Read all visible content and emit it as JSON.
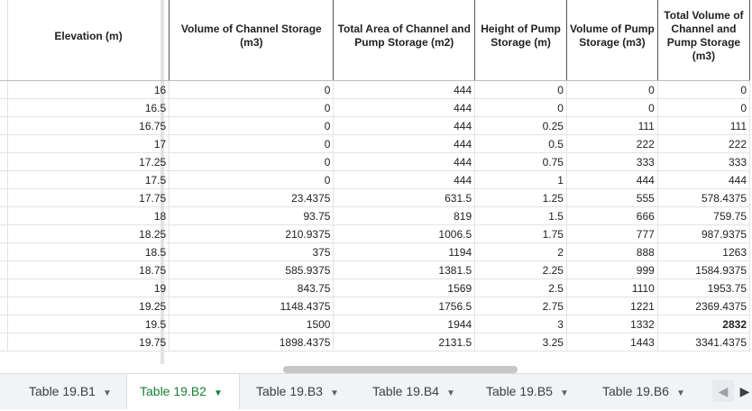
{
  "headers": [
    "Elevation (m)",
    "Volume of Channel Storage (m3)",
    "Total Area of Channel and Pump Storage (m2)",
    "Height of Pump Storage (m)",
    "Volume of Pump Storage (m3)",
    "Total Volume of Channel and Pump Storage (m3)"
  ],
  "rows": [
    [
      "16",
      "0",
      "444",
      "0",
      "0",
      "0"
    ],
    [
      "16.5",
      "0",
      "444",
      "0",
      "0",
      "0"
    ],
    [
      "16.75",
      "0",
      "444",
      "0.25",
      "111",
      "111"
    ],
    [
      "17",
      "0",
      "444",
      "0.5",
      "222",
      "222"
    ],
    [
      "17.25",
      "0",
      "444",
      "0.75",
      "333",
      "333"
    ],
    [
      "17.5",
      "0",
      "444",
      "1",
      "444",
      "444"
    ],
    [
      "17.75",
      "23.4375",
      "631.5",
      "1.25",
      "555",
      "578.4375"
    ],
    [
      "18",
      "93.75",
      "819",
      "1.5",
      "666",
      "759.75"
    ],
    [
      "18.25",
      "210.9375",
      "1006.5",
      "1.75",
      "777",
      "987.9375"
    ],
    [
      "18.5",
      "375",
      "1194",
      "2",
      "888",
      "1263"
    ],
    [
      "18.75",
      "585.9375",
      "1381.5",
      "2.25",
      "999",
      "1584.9375"
    ],
    [
      "19",
      "843.75",
      "1569",
      "2.5",
      "1110",
      "1953.75"
    ],
    [
      "19.25",
      "1148.4375",
      "1756.5",
      "2.75",
      "1221",
      "2369.4375"
    ],
    [
      "19.5",
      "1500",
      "1944",
      "3",
      "1332",
      "2832"
    ],
    [
      "19.75",
      "1898.4375",
      "2131.5",
      "3.25",
      "1443",
      "3341.4375"
    ]
  ],
  "bold_cell": {
    "row": 13,
    "col": 5
  },
  "tabs": [
    {
      "label": "Table 19.B1",
      "active": false
    },
    {
      "label": "Table 19.B2",
      "active": true
    },
    {
      "label": "Table 19.B3",
      "active": false
    },
    {
      "label": "Table 19.B4",
      "active": false
    },
    {
      "label": "Table 19.B5",
      "active": false
    },
    {
      "label": "Table 19.B6",
      "active": false
    }
  ],
  "icons": {
    "tab_menu": "chevron-down-icon",
    "prev": "chevron-left-icon",
    "next": "chevron-right-icon"
  },
  "colors": {
    "active_tab": "#188038",
    "tabbar_bg": "#f1f3f4"
  }
}
